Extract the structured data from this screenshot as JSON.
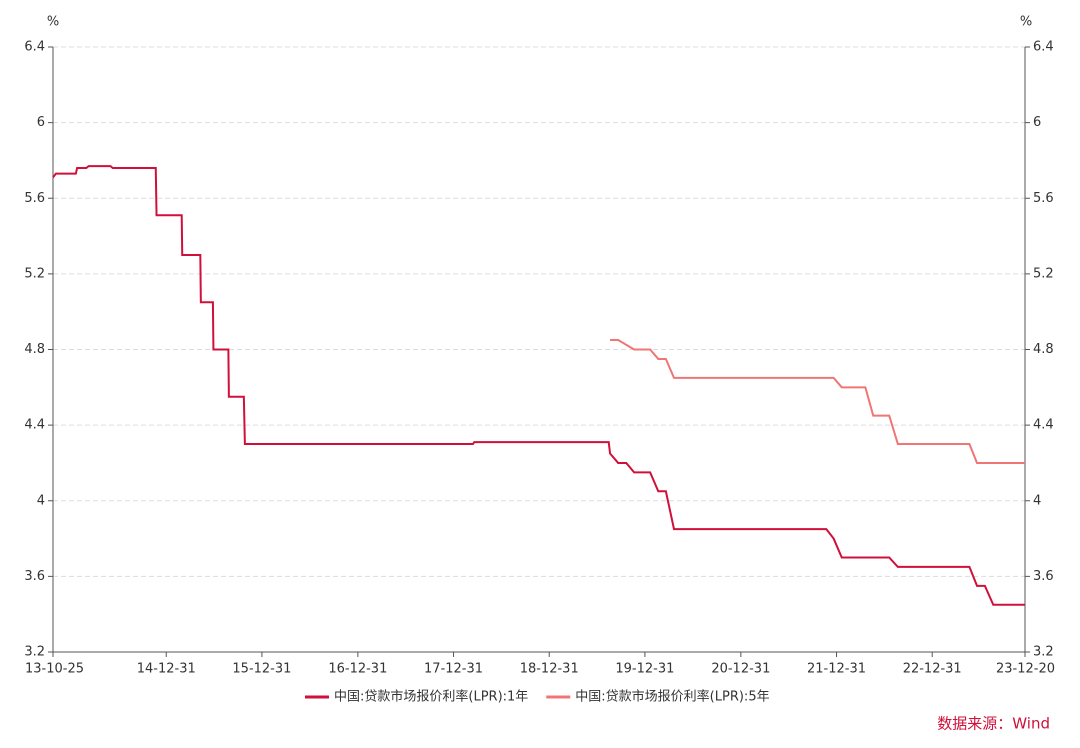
{
  "chart_data": {
    "type": "line",
    "y_unit": "%",
    "y2_unit": "%",
    "source": "数据来源：Wind",
    "xlim": [
      "13-10-25",
      "23-12-20"
    ],
    "xticks": [
      "13-10-25",
      "14-12-31",
      "15-12-31",
      "16-12-31",
      "17-12-31",
      "18-12-31",
      "19-12-31",
      "20-12-31",
      "21-12-31",
      "22-12-31",
      "23-12-20"
    ],
    "ylim": [
      3.2,
      6.4
    ],
    "yticks": [
      3.2,
      3.6,
      4,
      4.4,
      4.8,
      5.2,
      5.6,
      6,
      6.4
    ],
    "y2lim": [
      3.2,
      6.4
    ],
    "y2ticks": [
      3.2,
      3.6,
      4,
      4.4,
      4.8,
      5.2,
      5.6,
      6,
      6.4
    ],
    "grid": true,
    "series": [
      {
        "name": "中国:贷款市场报价利率(LPR):1年",
        "color": "#d0103a",
        "x": [
          "13-10-25",
          "13-11-05",
          "14-01-20",
          "14-01-25",
          "14-03-01",
          "14-03-10",
          "14-06-01",
          "14-06-10",
          "14-11-21",
          "14-11-24",
          "15-02-28",
          "15-03-02",
          "15-05-10",
          "15-05-12",
          "15-06-27",
          "15-06-29",
          "15-08-25",
          "15-08-27",
          "15-10-23",
          "15-10-27",
          "18-03-15",
          "18-03-20",
          "19-08-15",
          "19-08-20",
          "19-09-20",
          "19-10-21",
          "19-11-20",
          "20-01-20",
          "20-02-20",
          "20-03-20",
          "20-04-20",
          "21-11-22",
          "21-12-20",
          "22-01-20",
          "22-07-20",
          "22-08-22",
          "23-05-22",
          "23-06-20",
          "23-07-20",
          "23-08-21",
          "23-12-20"
        ],
        "values": [
          5.71,
          5.73,
          5.73,
          5.76,
          5.76,
          5.77,
          5.77,
          5.76,
          5.76,
          5.51,
          5.51,
          5.3,
          5.3,
          5.05,
          5.05,
          4.8,
          4.8,
          4.55,
          4.55,
          4.3,
          4.3,
          4.31,
          4.31,
          4.25,
          4.2,
          4.2,
          4.15,
          4.15,
          4.05,
          4.05,
          3.85,
          3.85,
          3.8,
          3.7,
          3.7,
          3.65,
          3.65,
          3.55,
          3.55,
          3.45,
          3.45
        ]
      },
      {
        "name": "中国:贷款市场报价利率(LPR):5年",
        "color": "#f07575",
        "x": [
          "19-08-20",
          "19-09-20",
          "19-11-20",
          "20-01-20",
          "20-02-20",
          "20-03-20",
          "20-04-20",
          "21-12-20",
          "22-01-20",
          "22-04-20",
          "22-05-20",
          "22-07-20",
          "22-08-22",
          "23-05-22",
          "23-06-20",
          "23-12-20"
        ],
        "values": [
          4.85,
          4.85,
          4.8,
          4.8,
          4.75,
          4.75,
          4.65,
          4.65,
          4.6,
          4.6,
          4.45,
          4.45,
          4.3,
          4.3,
          4.2,
          4.2
        ]
      }
    ]
  }
}
